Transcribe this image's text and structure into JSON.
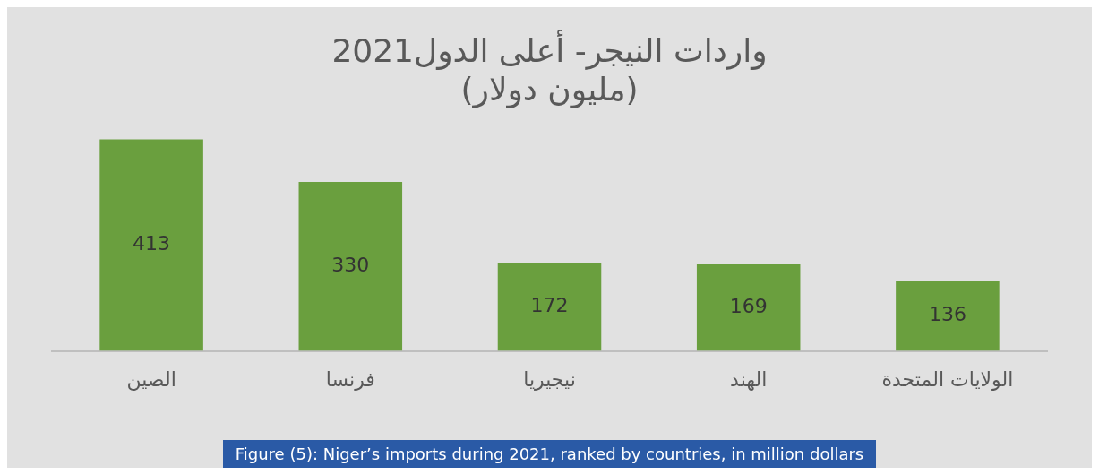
{
  "chart_data": {
    "type": "bar",
    "title": "2021واردات النيجر- أعلى الدول",
    "subtitle": "(مليون دولار)",
    "categories": [
      "الصين",
      "فرنسا",
      "نيجيريا",
      "الهند",
      "الولايات المتحدة"
    ],
    "values": [
      413,
      330,
      172,
      169,
      136
    ],
    "color": "#6a9f3e",
    "data_labels": true,
    "grid": false,
    "legend": false,
    "annotations": [
      "Figure (5): Niger’s imports during 2021, ranked by countries, in million dollars"
    ]
  }
}
